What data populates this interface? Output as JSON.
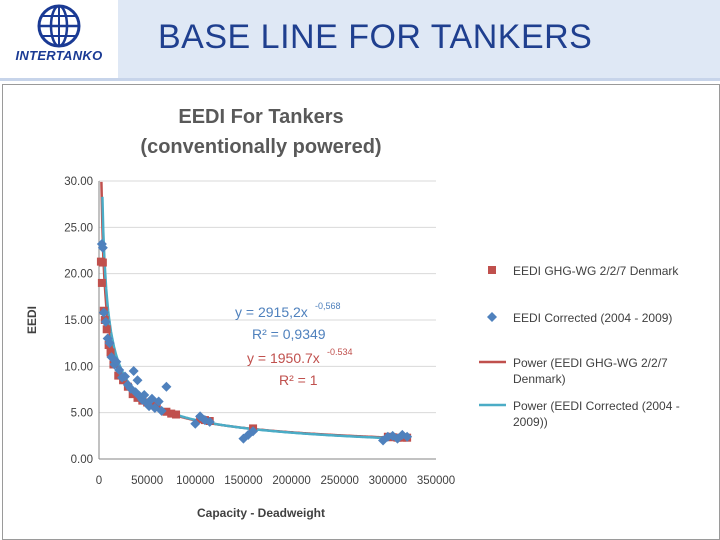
{
  "header": {
    "title": "BASE LINE FOR TANKERS",
    "logo_text": "INTERTANKO",
    "accent_color": "#1f3f8f",
    "band_color": "#dfe8f5"
  },
  "chart_data": {
    "type": "scatter",
    "title": "EEDI For Tankers",
    "subtitle": "(conventionally powered)",
    "xlabel": "Capacity - Deadweight",
    "ylabel": "EEDI",
    "xlim": [
      0,
      350000
    ],
    "ylim": [
      0,
      30
    ],
    "x_ticks": [
      "0",
      "50000",
      "100000",
      "150000",
      "200000",
      "250000",
      "300000",
      "350000"
    ],
    "y_ticks": [
      "0.00",
      "5.00",
      "10.00",
      "15.00",
      "20.00",
      "25.00",
      "30.00"
    ],
    "grid": true,
    "legend_position": "right",
    "series": [
      {
        "name": "EEDI GHG-WG 2/2/7 Denmark",
        "kind": "points",
        "marker": "square",
        "color": "#c0504d",
        "x": [
          2000,
          3000,
          4000,
          5000,
          6000,
          8000,
          10000,
          12000,
          15000,
          20000,
          25000,
          30000,
          35000,
          40000,
          45000,
          50000,
          55000,
          60000,
          70000,
          75000,
          80000,
          105000,
          110000,
          115000,
          160000,
          300000,
          305000,
          310000,
          315000,
          320000
        ],
        "y": [
          21.3,
          19.0,
          21.2,
          16.0,
          15.0,
          14.0,
          12.3,
          11.5,
          10.2,
          9.0,
          8.5,
          7.8,
          7.0,
          6.6,
          6.3,
          6.1,
          5.8,
          5.6,
          5.1,
          4.9,
          4.8,
          4.3,
          4.2,
          4.1,
          3.3,
          2.4,
          2.35,
          2.3,
          2.3,
          2.3
        ]
      },
      {
        "name": "EEDI Corrected (2004 - 2009)",
        "kind": "points",
        "marker": "diamond",
        "color": "#4f81bd",
        "x": [
          3000,
          4000,
          5000,
          7000,
          9000,
          11000,
          13000,
          16000,
          18000,
          21000,
          24000,
          27000,
          30000,
          33000,
          36000,
          38000,
          40000,
          42000,
          45000,
          47000,
          50000,
          52000,
          55000,
          58000,
          62000,
          65000,
          70000,
          100000,
          105000,
          110000,
          115000,
          150000,
          155000,
          160000,
          295000,
          300000,
          305000,
          310000,
          315000,
          320000
        ],
        "y": [
          23.2,
          22.8,
          15.8,
          14.8,
          13.0,
          12.5,
          11.0,
          10.2,
          10.5,
          9.6,
          8.8,
          8.9,
          8.0,
          7.6,
          9.5,
          7.2,
          8.5,
          6.8,
          6.4,
          6.9,
          6.0,
          5.7,
          6.5,
          5.5,
          6.2,
          5.2,
          7.8,
          3.8,
          4.6,
          4.2,
          4.0,
          2.2,
          2.6,
          3.0,
          2.0,
          2.4,
          2.5,
          2.2,
          2.6,
          2.4
        ]
      },
      {
        "name": "Power (EEDI GHG-WG 2/2/7 Denmark)",
        "kind": "trend",
        "color": "#c0504d",
        "equation": "y = 1950.7x-0.534",
        "equation_label": "y = 1950.7x",
        "exponent_label": "-0.534",
        "r2": "R² = 1",
        "coef": 1950.7,
        "exp": -0.534
      },
      {
        "name": "Power (EEDI Corrected (2004 - 2009))",
        "kind": "trend",
        "color": "#4bacc6",
        "equation": "y = 2915,2x-0,568",
        "equation_label": "y = 2915,2x",
        "exponent_label": "-0,568",
        "r2": "R² = 0,9349",
        "coef": 2915.2,
        "exp": -0.568
      }
    ],
    "legend": [
      {
        "label_lines": [
          "EEDI GHG-WG 2/2/7 Denmark"
        ],
        "swatch": "square",
        "color": "#c0504d"
      },
      {
        "label_lines": [
          "EEDI Corrected (2004 - 2009)"
        ],
        "swatch": "diamond",
        "color": "#4f81bd"
      },
      {
        "label_lines": [
          "Power (EEDI GHG-WG 2/2/7",
          "Denmark)"
        ],
        "swatch": "line",
        "color": "#c0504d"
      },
      {
        "label_lines": [
          "Power (EEDI Corrected (2004 -",
          "2009))"
        ],
        "swatch": "line",
        "color": "#4bacc6"
      }
    ]
  }
}
